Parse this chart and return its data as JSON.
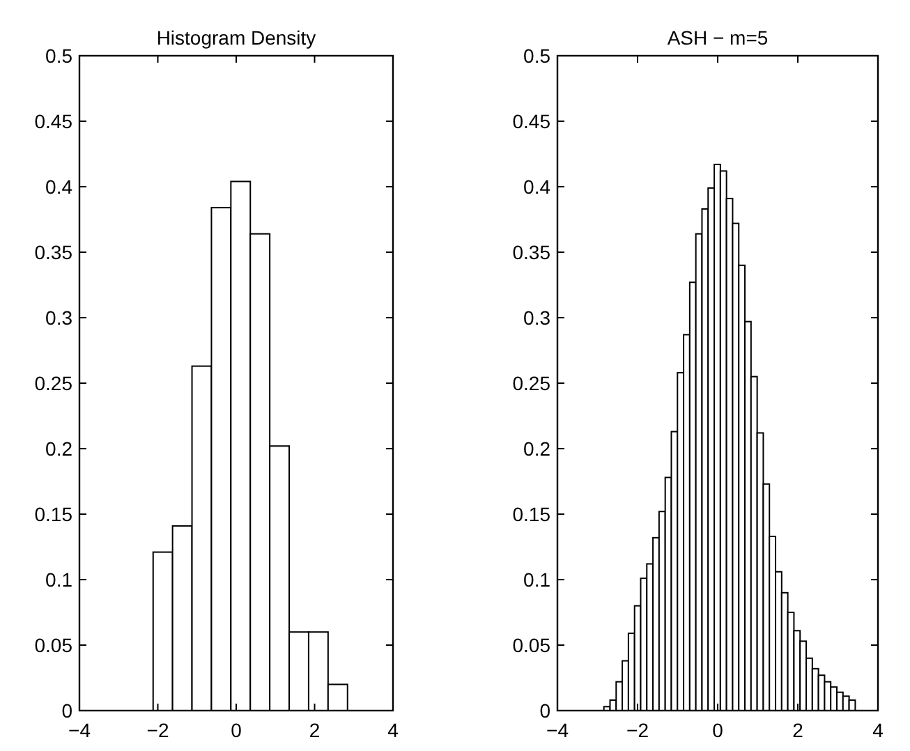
{
  "chart_data": [
    {
      "type": "histogram",
      "title": "Histogram Density",
      "bins": [
        -2.12,
        -1.624,
        -1.128,
        -0.632,
        -0.136,
        0.36,
        0.856,
        1.352,
        1.848,
        2.344,
        2.84
      ],
      "values": [
        0.121,
        0.141,
        0.263,
        0.384,
        0.404,
        0.364,
        0.202,
        0.06,
        0.06,
        0.02
      ],
      "color": "#ffffff",
      "xlim": [
        -4,
        4
      ],
      "ylim": [
        0,
        0.5
      ],
      "xticks": [
        -4,
        -2,
        0,
        2,
        4
      ],
      "yticks": [
        0,
        0.05,
        0.1,
        0.15,
        0.2,
        0.25,
        0.3,
        0.35,
        0.4,
        0.45,
        0.5
      ]
    },
    {
      "type": "histogram",
      "title": "ASH − m=5",
      "bins": [
        -2.84,
        -2.687,
        -2.534,
        -2.381,
        -2.228,
        -2.075,
        -1.922,
        -1.769,
        -1.616,
        -1.463,
        -1.31,
        -1.157,
        -1.004,
        -0.851,
        -0.698,
        -0.545,
        -0.392,
        -0.239,
        -0.086,
        0.067,
        0.22,
        0.373,
        0.526,
        0.679,
        0.832,
        0.985,
        1.138,
        1.291,
        1.444,
        1.597,
        1.75,
        1.903,
        2.056,
        2.209,
        2.362,
        2.515,
        2.668,
        2.821,
        2.974,
        3.127,
        3.28,
        3.433
      ],
      "values": [
        0.003,
        0.008,
        0.022,
        0.038,
        0.059,
        0.08,
        0.101,
        0.112,
        0.132,
        0.152,
        0.178,
        0.213,
        0.258,
        0.287,
        0.327,
        0.364,
        0.383,
        0.399,
        0.417,
        0.412,
        0.391,
        0.372,
        0.34,
        0.297,
        0.255,
        0.212,
        0.173,
        0.133,
        0.106,
        0.09,
        0.075,
        0.061,
        0.053,
        0.04,
        0.032,
        0.027,
        0.022,
        0.018,
        0.014,
        0.011,
        0.008
      ],
      "color": "#ffffff",
      "xlim": [
        -4,
        4
      ],
      "ylim": [
        0,
        0.5
      ],
      "xticks": [
        -4,
        -2,
        0,
        2,
        4
      ],
      "yticks": [
        0,
        0.05,
        0.1,
        0.15,
        0.2,
        0.25,
        0.3,
        0.35,
        0.4,
        0.45,
        0.5
      ]
    }
  ]
}
